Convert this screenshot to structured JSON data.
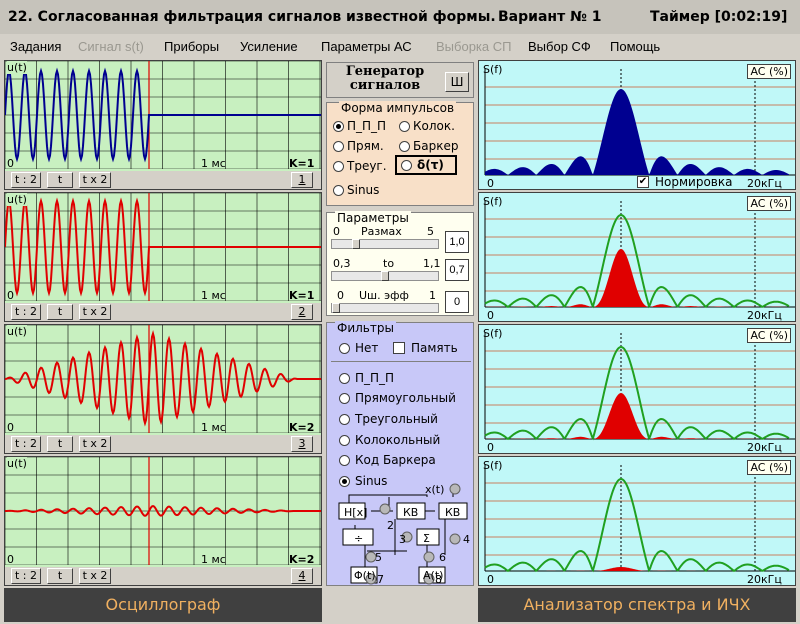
{
  "title": {
    "left": "22. Согласованная фильтрация сигналов известной формы.",
    "variant": "Вариант № 1",
    "timer": "Таймер [0:02:19]"
  },
  "menu": [
    {
      "label": "Задания",
      "disabled": false
    },
    {
      "label": "Сигнал s(t)",
      "disabled": true
    },
    {
      "label": "Приборы",
      "disabled": false
    },
    {
      "label": "Усиление",
      "disabled": false
    },
    {
      "label": "Параметры  АС",
      "disabled": false
    },
    {
      "label": "Выборка СП",
      "disabled": true
    },
    {
      "label": "Выбор СФ",
      "disabled": false
    },
    {
      "label": "Помощь",
      "disabled": false
    }
  ],
  "oscillograph": {
    "footer": "Осциллограф",
    "channels": [
      {
        "ylabel": "u(t)",
        "xstart": "0",
        "xmid": "1 мс",
        "k": "K=1",
        "btn1": "t : 2",
        "btn2": "t",
        "btn3": "t x 2",
        "num": "1"
      },
      {
        "ylabel": "u(t)",
        "xstart": "0",
        "xmid": "1 мс",
        "k": "K=1",
        "btn1": "t : 2",
        "btn2": "t",
        "btn3": "t x 2",
        "num": "2"
      },
      {
        "ylabel": "u(t)",
        "xstart": "0",
        "xmid": "1 мс",
        "k": "K=2",
        "btn1": "t : 2",
        "btn2": "t",
        "btn3": "t x 2",
        "num": "3"
      },
      {
        "ylabel": "u(t)",
        "xstart": "0",
        "xmid": "1 мс",
        "k": "K=2",
        "btn1": "t : 2",
        "btn2": "t",
        "btn3": "t x 2",
        "num": "4"
      }
    ]
  },
  "generator": {
    "title": "Генератор сигналов",
    "w_button": "Ш",
    "shape_group": "Форма импульсов",
    "shapes": [
      "П_П_П",
      "Колок.",
      "Прям.",
      "Баркер",
      "Треуг.",
      "δ(τ)",
      "Sinus"
    ],
    "params_group": "Параметры",
    "amp": {
      "min": "0",
      "label": "Размах",
      "max": "5",
      "value": "1,0",
      "pos": 0.2
    },
    "to": {
      "min": "0,3",
      "label": "to",
      "max": "1,1",
      "value": "0,7",
      "pos": 0.5
    },
    "noise": {
      "min": "0",
      "label": "Uш. эфф",
      "max": "1",
      "value": "0",
      "pos": 0.0
    },
    "filters_group": "Фильтры",
    "none_label": "Нет",
    "memory_label": "Память",
    "filters": [
      "П_П_П",
      "Прямоугольный",
      "Треугольный",
      "Колокольный",
      "Код Баркера",
      "Sinus"
    ],
    "diagram": {
      "xt": "x(t)",
      "hx": "H[x]",
      "kb1": "КВ",
      "kb2": "КВ",
      "div": "÷",
      "sum": "Σ",
      "phi": "Φ(t)",
      "at": "A(t)",
      "n2": "2",
      "n3": "3",
      "n4": "4",
      "n5": "5",
      "n6": "6",
      "n7": "7",
      "n8": "8"
    }
  },
  "analyzer": {
    "footer": "Анализатор спектра и ИЧХ",
    "normalize": "Нормировка",
    "panels": [
      {
        "ylabel": "S(f)",
        "ac": "AC (%)",
        "xstart": "0",
        "xend": "20кГц"
      },
      {
        "ylabel": "S(f)",
        "ac": "AC (%)",
        "xstart": "0",
        "xend": "20кГц"
      },
      {
        "ylabel": "S(f)",
        "ac": "AC (%)",
        "xstart": "0",
        "xend": "20кГц"
      },
      {
        "ylabel": "S(f)",
        "ac": "AC (%)",
        "xstart": "0",
        "xend": "20кГц"
      }
    ]
  },
  "colors": {
    "osc_bg": "#c8f0c0",
    "spec_bg": "#c0f8f8",
    "blue": "#000090",
    "red": "#e00000",
    "green": "#20a020",
    "gen_bg": "#f8e0c8",
    "filter_bg": "#c8c8f8"
  }
}
